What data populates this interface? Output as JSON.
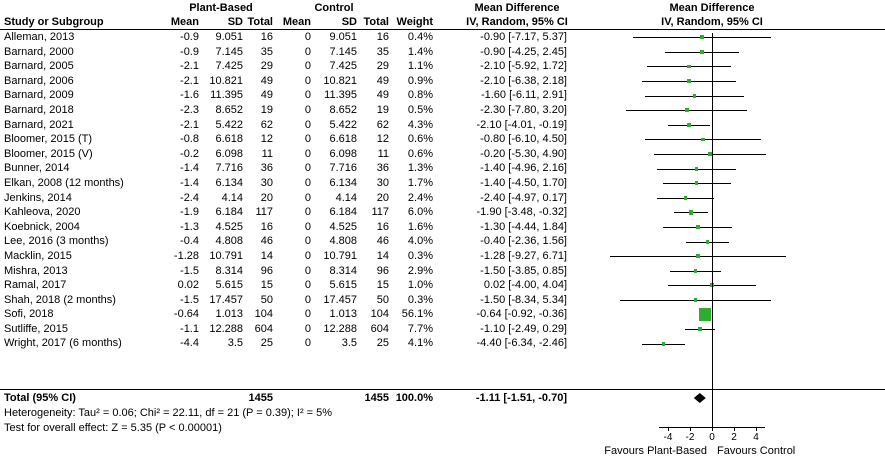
{
  "header": {
    "group_plant": "Plant-Based",
    "group_control": "Control",
    "group_md_text": "Mean Difference",
    "group_md_plot": "Mean Difference",
    "col_study": "Study or Subgroup",
    "col_mean": "Mean",
    "col_sd": "SD",
    "col_total": "Total",
    "col_weight": "Weight",
    "col_ci": "IV, Random, 95% CI",
    "col_ci_plot": "IV, Random, 95% CI"
  },
  "chart_data": {
    "type": "forest",
    "effect_measure": "Mean Difference",
    "method": "IV, Random, 95% CI",
    "marker_color": "#2EAC2E",
    "axis": {
      "ticks": [
        -4,
        -2,
        0,
        2,
        4
      ],
      "label_left": "Favours Plant-Based",
      "label_right": "Favours Control"
    },
    "studies": [
      {
        "study": "Alleman, 2013",
        "pb_mean": "-0.9",
        "pb_sd": "9.051",
        "pb_total": "16",
        "c_mean": "0",
        "c_sd": "9.051",
        "c_total": "16",
        "weight": "0.4%",
        "ci_text": "-0.90 [-7.17, 5.37]",
        "est": -0.9,
        "lo": -7.17,
        "hi": 5.37,
        "w": 0.4
      },
      {
        "study": "Barnard, 2000",
        "pb_mean": "-0.9",
        "pb_sd": "7.145",
        "pb_total": "35",
        "c_mean": "0",
        "c_sd": "7.145",
        "c_total": "35",
        "weight": "1.4%",
        "ci_text": "-0.90 [-4.25, 2.45]",
        "est": -0.9,
        "lo": -4.25,
        "hi": 2.45,
        "w": 1.4
      },
      {
        "study": "Barnard, 2005",
        "pb_mean": "-2.1",
        "pb_sd": "7.425",
        "pb_total": "29",
        "c_mean": "0",
        "c_sd": "7.425",
        "c_total": "29",
        "weight": "1.1%",
        "ci_text": "-2.10 [-5.92, 1.72]",
        "est": -2.1,
        "lo": -5.92,
        "hi": 1.72,
        "w": 1.1
      },
      {
        "study": "Barnard, 2006",
        "pb_mean": "-2.1",
        "pb_sd": "10.821",
        "pb_total": "49",
        "c_mean": "0",
        "c_sd": "10.821",
        "c_total": "49",
        "weight": "0.9%",
        "ci_text": "-2.10 [-6.38, 2.18]",
        "est": -2.1,
        "lo": -6.38,
        "hi": 2.18,
        "w": 0.9
      },
      {
        "study": "Barnard, 2009",
        "pb_mean": "-1.6",
        "pb_sd": "11.395",
        "pb_total": "49",
        "c_mean": "0",
        "c_sd": "11.395",
        "c_total": "49",
        "weight": "0.8%",
        "ci_text": "-1.60 [-6.11, 2.91]",
        "est": -1.6,
        "lo": -6.11,
        "hi": 2.91,
        "w": 0.8
      },
      {
        "study": "Barnard, 2018",
        "pb_mean": "-2.3",
        "pb_sd": "8.652",
        "pb_total": "19",
        "c_mean": "0",
        "c_sd": "8.652",
        "c_total": "19",
        "weight": "0.5%",
        "ci_text": "-2.30 [-7.80, 3.20]",
        "est": -2.3,
        "lo": -7.8,
        "hi": 3.2,
        "w": 0.5
      },
      {
        "study": "Barnard, 2021",
        "pb_mean": "-2.1",
        "pb_sd": "5.422",
        "pb_total": "62",
        "c_mean": "0",
        "c_sd": "5.422",
        "c_total": "62",
        "weight": "4.3%",
        "ci_text": "-2.10 [-4.01, -0.19]",
        "est": -2.1,
        "lo": -4.01,
        "hi": -0.19,
        "w": 4.3
      },
      {
        "study": "Bloomer, 2015 (T)",
        "pb_mean": "-0.8",
        "pb_sd": "6.618",
        "pb_total": "12",
        "c_mean": "0",
        "c_sd": "6.618",
        "c_total": "12",
        "weight": "0.6%",
        "ci_text": "-0.80 [-6.10, 4.50]",
        "est": -0.8,
        "lo": -6.1,
        "hi": 4.5,
        "w": 0.6
      },
      {
        "study": "Bloomer, 2015 (V)",
        "pb_mean": "-0.2",
        "pb_sd": "6.098",
        "pb_total": "11",
        "c_mean": "0",
        "c_sd": "6.098",
        "c_total": "11",
        "weight": "0.6%",
        "ci_text": "-0.20 [-5.30, 4.90]",
        "est": -0.2,
        "lo": -5.3,
        "hi": 4.9,
        "w": 0.6
      },
      {
        "study": "Bunner, 2014",
        "pb_mean": "-1.4",
        "pb_sd": "7.716",
        "pb_total": "36",
        "c_mean": "0",
        "c_sd": "7.716",
        "c_total": "36",
        "weight": "1.3%",
        "ci_text": "-1.40 [-4.96, 2.16]",
        "est": -1.4,
        "lo": -4.96,
        "hi": 2.16,
        "w": 1.3
      },
      {
        "study": "Elkan, 2008 (12 months)",
        "pb_mean": "-1.4",
        "pb_sd": "6.134",
        "pb_total": "30",
        "c_mean": "0",
        "c_sd": "6.134",
        "c_total": "30",
        "weight": "1.7%",
        "ci_text": "-1.40 [-4.50, 1.70]",
        "est": -1.4,
        "lo": -4.5,
        "hi": 1.7,
        "w": 1.7
      },
      {
        "study": "Jenkins, 2014",
        "pb_mean": "-2.4",
        "pb_sd": "4.14",
        "pb_total": "20",
        "c_mean": "0",
        "c_sd": "4.14",
        "c_total": "20",
        "weight": "2.4%",
        "ci_text": "-2.40 [-4.97, 0.17]",
        "est": -2.4,
        "lo": -4.97,
        "hi": 0.17,
        "w": 2.4
      },
      {
        "study": "Kahleova, 2020",
        "pb_mean": "-1.9",
        "pb_sd": "6.184",
        "pb_total": "117",
        "c_mean": "0",
        "c_sd": "6.184",
        "c_total": "117",
        "weight": "6.0%",
        "ci_text": "-1.90 [-3.48, -0.32]",
        "est": -1.9,
        "lo": -3.48,
        "hi": -0.32,
        "w": 6.0
      },
      {
        "study": "Koebnick, 2004",
        "pb_mean": "-1.3",
        "pb_sd": "4.525",
        "pb_total": "16",
        "c_mean": "0",
        "c_sd": "4.525",
        "c_total": "16",
        "weight": "1.6%",
        "ci_text": "-1.30 [-4.44, 1.84]",
        "est": -1.3,
        "lo": -4.44,
        "hi": 1.84,
        "w": 1.6
      },
      {
        "study": "Lee, 2016 (3 months)",
        "pb_mean": "-0.4",
        "pb_sd": "4.808",
        "pb_total": "46",
        "c_mean": "0",
        "c_sd": "4.808",
        "c_total": "46",
        "weight": "4.0%",
        "ci_text": "-0.40 [-2.36, 1.56]",
        "est": -0.4,
        "lo": -2.36,
        "hi": 1.56,
        "w": 4.0
      },
      {
        "study": "Macklin, 2015",
        "pb_mean": "-1.28",
        "pb_sd": "10.791",
        "pb_total": "14",
        "c_mean": "0",
        "c_sd": "10.791",
        "c_total": "14",
        "weight": "0.3%",
        "ci_text": "-1.28 [-9.27, 6.71]",
        "est": -1.28,
        "lo": -9.27,
        "hi": 6.71,
        "w": 0.3
      },
      {
        "study": "Mishra, 2013",
        "pb_mean": "-1.5",
        "pb_sd": "8.314",
        "pb_total": "96",
        "c_mean": "0",
        "c_sd": "8.314",
        "c_total": "96",
        "weight": "2.9%",
        "ci_text": "-1.50 [-3.85, 0.85]",
        "est": -1.5,
        "lo": -3.85,
        "hi": 0.85,
        "w": 2.9
      },
      {
        "study": "Ramal, 2017",
        "pb_mean": "0.02",
        "pb_sd": "5.615",
        "pb_total": "15",
        "c_mean": "0",
        "c_sd": "5.615",
        "c_total": "15",
        "weight": "1.0%",
        "ci_text": "0.02 [-4.00, 4.04]",
        "est": 0.02,
        "lo": -4.0,
        "hi": 4.04,
        "w": 1.0
      },
      {
        "study": "Shah, 2018 (2 months)",
        "pb_mean": "-1.5",
        "pb_sd": "17.457",
        "pb_total": "50",
        "c_mean": "0",
        "c_sd": "17.457",
        "c_total": "50",
        "weight": "0.3%",
        "ci_text": "-1.50 [-8.34, 5.34]",
        "est": -1.5,
        "lo": -8.34,
        "hi": 5.34,
        "w": 0.3
      },
      {
        "study": "Sofi, 2018",
        "pb_mean": "-0.64",
        "pb_sd": "1.013",
        "pb_total": "104",
        "c_mean": "0",
        "c_sd": "1.013",
        "c_total": "104",
        "weight": "56.1%",
        "ci_text": "-0.64 [-0.92, -0.36]",
        "est": -0.64,
        "lo": -0.92,
        "hi": -0.36,
        "w": 56.1
      },
      {
        "study": "Sutliffe, 2015",
        "pb_mean": "-1.1",
        "pb_sd": "12.288",
        "pb_total": "604",
        "c_mean": "0",
        "c_sd": "12.288",
        "c_total": "604",
        "weight": "7.7%",
        "ci_text": "-1.10 [-2.49, 0.29]",
        "est": -1.1,
        "lo": -2.49,
        "hi": 0.29,
        "w": 7.7
      },
      {
        "study": "Wright, 2017 (6 months)",
        "pb_mean": "-4.4",
        "pb_sd": "3.5",
        "pb_total": "25",
        "c_mean": "0",
        "c_sd": "3.5",
        "c_total": "25",
        "weight": "4.1%",
        "ci_text": "-4.40 [-6.34, -2.46]",
        "est": -4.4,
        "lo": -6.34,
        "hi": -2.46,
        "w": 4.1
      }
    ],
    "total": {
      "label": "Total (95% CI)",
      "pb_total": "1455",
      "c_total": "1455",
      "weight": "100.0%",
      "ci_text": "-1.11 [-1.51, -0.70]",
      "est": -1.11,
      "lo": -1.51,
      "hi": -0.7
    },
    "footer": {
      "heterogeneity": "Heterogeneity: Tau² = 0.06; Chi² = 22.11, df = 21 (P = 0.39); I² = 5%",
      "overall": "Test for overall effect: Z = 5.35 (P < 0.00001)"
    }
  }
}
